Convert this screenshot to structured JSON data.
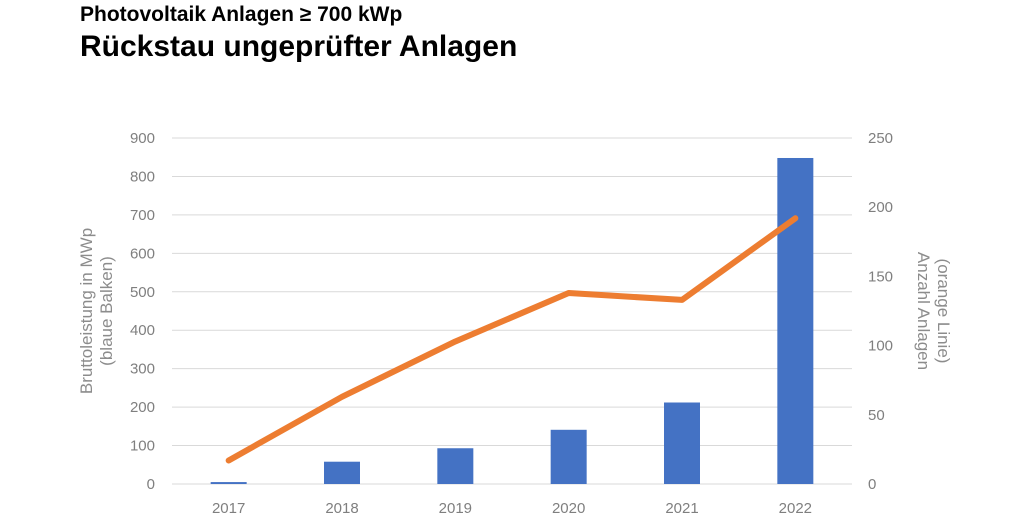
{
  "chart_data": {
    "type": "bar+line",
    "title": "Photovoltaik Anlagen ≥ 700 kWp",
    "subtitle": "Rückstau ungeprüfter Anlagen",
    "categories": [
      "2017",
      "2018",
      "2019",
      "2020",
      "2021",
      "2022"
    ],
    "series": [
      {
        "name": "Bruttoleistung in MWp",
        "type": "bar",
        "axis": "left",
        "color": "#4472c4",
        "values": [
          5,
          58,
          93,
          141,
          212,
          848
        ]
      },
      {
        "name": "Anzahl Anlagen",
        "type": "line",
        "axis": "right",
        "color": "#ed7d31",
        "values": [
          17,
          63,
          103,
          138,
          133,
          192
        ]
      }
    ],
    "ylabel_left": [
      "Bruttoleistung in MWp",
      "(blaue Balken)"
    ],
    "ylabel_right": [
      "Anzahl Anlagen",
      "(orange Linie)"
    ],
    "ylim_left": [
      0,
      900
    ],
    "ylim_right": [
      0,
      250
    ],
    "yticks_left": [
      "0",
      "100",
      "200",
      "300",
      "400",
      "500",
      "600",
      "700",
      "800",
      "900"
    ],
    "yticks_right": [
      "0",
      "50",
      "100",
      "150",
      "200",
      "250"
    ],
    "grid": true
  }
}
